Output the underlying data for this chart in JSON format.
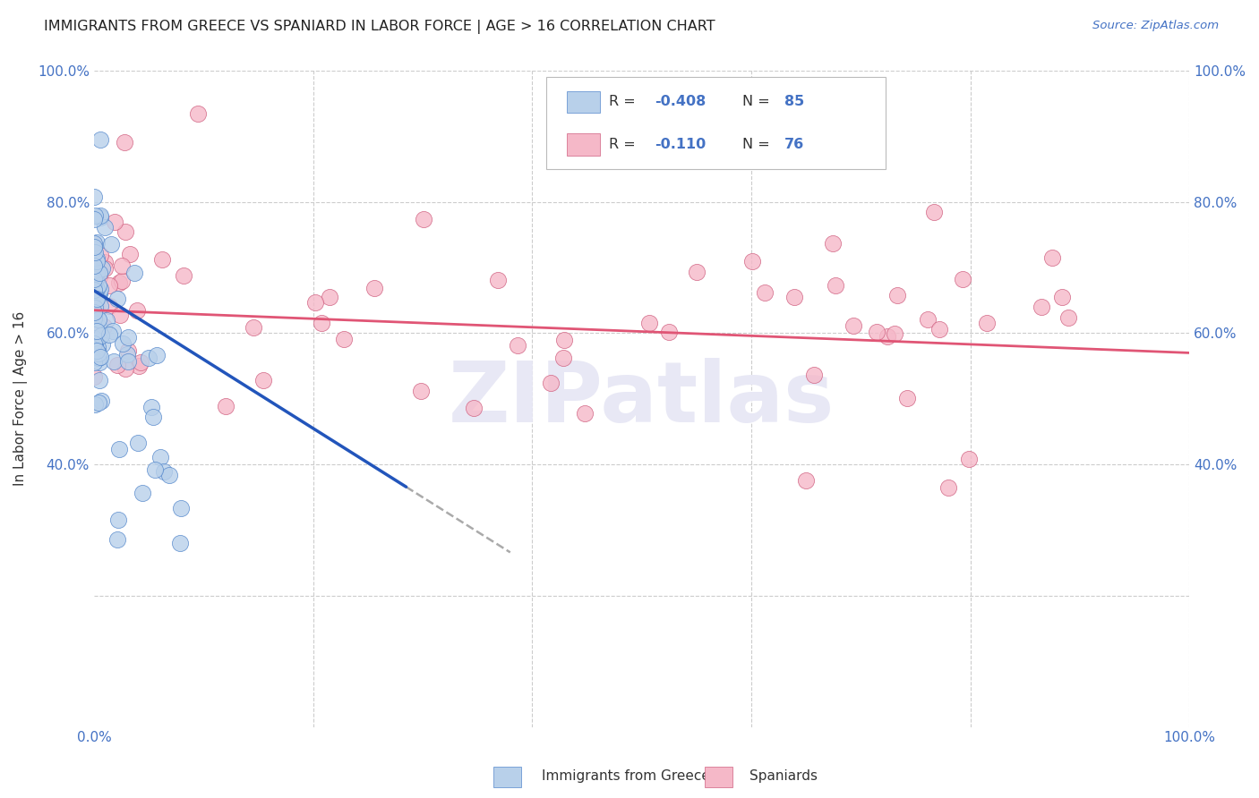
{
  "title": "IMMIGRANTS FROM GREECE VS SPANIARD IN LABOR FORCE | AGE > 16 CORRELATION CHART",
  "source": "Source: ZipAtlas.com",
  "ylabel": "In Labor Force | Age > 16",
  "r_greece": -0.408,
  "n_greece": 85,
  "r_spain": -0.11,
  "n_spain": 76,
  "color_greece_fill": "#b8d0ea",
  "color_greece_edge": "#5588cc",
  "color_spain_fill": "#f5b8c8",
  "color_spain_edge": "#d06080",
  "color_greece_line": "#2255bb",
  "color_spain_line": "#e05575",
  "color_axis_labels": "#4472c4",
  "color_title": "#222222",
  "color_source": "#4472c4",
  "color_grid": "#cccccc",
  "color_watermark": "#e8e8f5",
  "watermark_text": "ZIPatlas",
  "xlim": [
    0.0,
    1.0
  ],
  "ylim": [
    0.0,
    1.0
  ],
  "xtick_positions": [
    0.0,
    1.0
  ],
  "xtick_labels": [
    "0.0%",
    "100.0%"
  ],
  "ytick_positions": [
    0.0,
    0.2,
    0.4,
    0.6,
    0.8,
    1.0
  ],
  "ytick_labels_left": [
    "",
    "",
    "40.0%",
    "60.0%",
    "80.0%",
    "100.0%"
  ],
  "ytick_labels_right": [
    "",
    "",
    "40.0%",
    "60.0%",
    "80.0%",
    "100.0%"
  ],
  "legend_r1_val": "-0.408",
  "legend_n1_val": "85",
  "legend_r2_val": "-0.110",
  "legend_n2_val": "76",
  "bottom_legend1": "Immigrants from Greece",
  "bottom_legend2": "Spaniards"
}
